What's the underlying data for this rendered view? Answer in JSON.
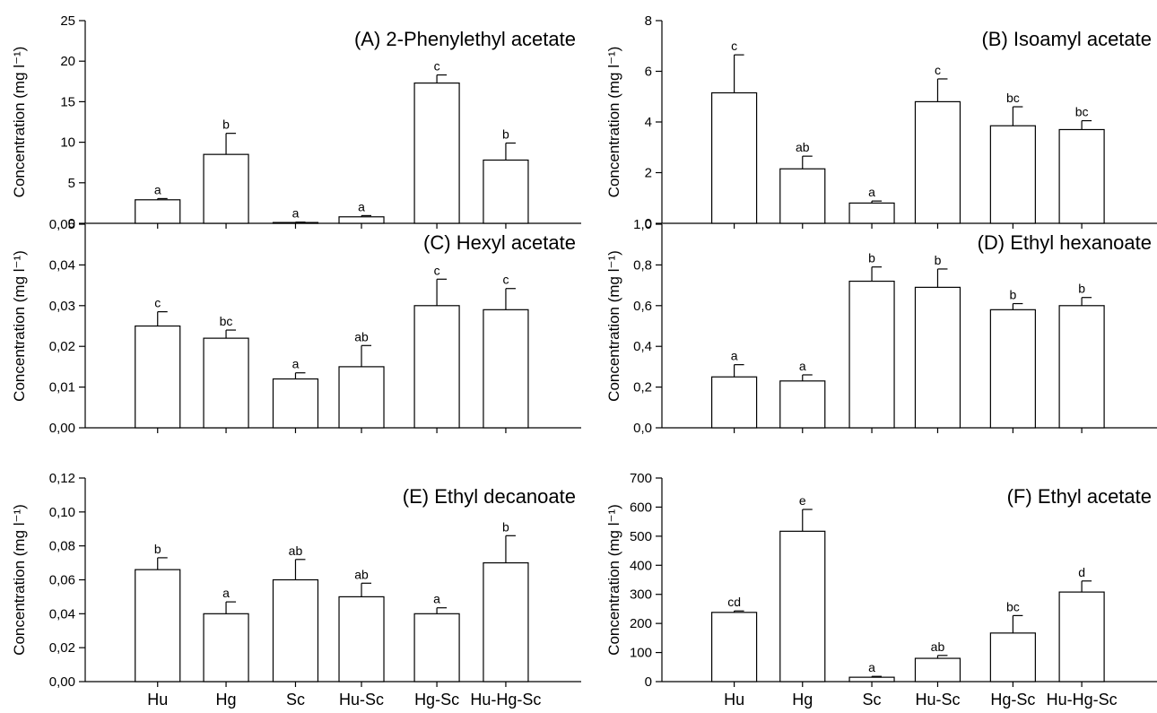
{
  "chart_data": [
    {
      "type": "bar",
      "title": "(A)  2-Phenylethyl acetate",
      "ylabel": "Concentration (mg l⁻¹)",
      "categories": [
        "Hu",
        "Hg",
        "Sc",
        "Hu-Sc",
        "Hg-Sc",
        "Hu-Hg-Sc"
      ],
      "values": [
        2.9,
        8.5,
        0.1,
        0.8,
        17.3,
        7.8
      ],
      "errors": [
        0.15,
        2.6,
        0.05,
        0.15,
        1.0,
        2.1
      ],
      "letters": [
        "a",
        "b",
        "a",
        "a",
        "c",
        "b"
      ],
      "ylim": [
        0,
        25
      ],
      "yticks": [
        0,
        5,
        10,
        15,
        20,
        25
      ],
      "ytick_labels": [
        "0",
        "5",
        "10",
        "15",
        "20",
        "25"
      ],
      "show_xtick_labels": false
    },
    {
      "type": "bar",
      "title": "(B) Isoamyl acetate",
      "ylabel": "Concentration (mg l⁻¹)",
      "categories": [
        "Hu",
        "Hg",
        "Sc",
        "Hu-Sc",
        "Hg-Sc",
        "Hu-Hg-Sc"
      ],
      "values": [
        5.15,
        2.15,
        0.8,
        4.8,
        3.85,
        3.7
      ],
      "errors": [
        1.5,
        0.5,
        0.08,
        0.9,
        0.75,
        0.35
      ],
      "letters": [
        "c",
        "ab",
        "a",
        "c",
        "bc",
        "bc"
      ],
      "ylim": [
        0,
        8
      ],
      "yticks": [
        0,
        2,
        4,
        6,
        8
      ],
      "ytick_labels": [
        "0",
        "2",
        "4",
        "6",
        "8"
      ],
      "show_xtick_labels": false
    },
    {
      "type": "bar",
      "title": "(C)  Hexyl acetate",
      "ylabel": "Concentration (mg l⁻¹)",
      "categories": [
        "Hu",
        "Hg",
        "Sc",
        "Hu-Sc",
        "Hg-Sc",
        "Hu-Hg-Sc"
      ],
      "values": [
        0.025,
        0.022,
        0.012,
        0.015,
        0.03,
        0.029
      ],
      "errors": [
        0.0035,
        0.002,
        0.0015,
        0.0052,
        0.0065,
        0.0052
      ],
      "letters": [
        "c",
        "bc",
        "a",
        "ab",
        "c",
        "c"
      ],
      "ylim": [
        0,
        0.05
      ],
      "yticks": [
        0,
        0.01,
        0.02,
        0.03,
        0.04,
        0.05
      ],
      "ytick_labels": [
        "0,00",
        "0,01",
        "0,02",
        "0,03",
        "0,04",
        "0,05"
      ],
      "show_xtick_labels": false
    },
    {
      "type": "bar",
      "title": "(D) Ethyl hexanoate",
      "ylabel": "Concentration (mg l⁻¹)",
      "categories": [
        "Hu",
        "Hg",
        "Sc",
        "Hu-Sc",
        "Hg-Sc",
        "Hu-Hg-Sc"
      ],
      "values": [
        0.25,
        0.23,
        0.72,
        0.69,
        0.58,
        0.6
      ],
      "errors": [
        0.06,
        0.03,
        0.07,
        0.09,
        0.03,
        0.04
      ],
      "letters": [
        "a",
        "a",
        "b",
        "b",
        "b",
        "b"
      ],
      "ylim": [
        0,
        1
      ],
      "yticks": [
        0,
        0.2,
        0.4,
        0.6,
        0.8,
        1.0
      ],
      "ytick_labels": [
        "0,0",
        "0,2",
        "0,4",
        "0,6",
        "0,8",
        "1,0"
      ],
      "show_xtick_labels": false
    },
    {
      "type": "bar",
      "title": "(E)  Ethyl decanoate",
      "ylabel": "Concentration (mg l⁻¹)",
      "categories": [
        "Hu",
        "Hg",
        "Sc",
        "Hu-Sc",
        "Hg-Sc",
        "Hu-Hg-Sc"
      ],
      "values": [
        0.066,
        0.04,
        0.06,
        0.05,
        0.04,
        0.07
      ],
      "errors": [
        0.007,
        0.007,
        0.012,
        0.008,
        0.0035,
        0.016
      ],
      "letters": [
        "b",
        "a",
        "ab",
        "ab",
        "a",
        "b"
      ],
      "ylim": [
        0,
        0.12
      ],
      "yticks": [
        0,
        0.02,
        0.04,
        0.06,
        0.08,
        0.1,
        0.12
      ],
      "ytick_labels": [
        "0,00",
        "0,02",
        "0,04",
        "0,06",
        "0,08",
        "0,10",
        "0,12"
      ],
      "show_xtick_labels": true
    },
    {
      "type": "bar",
      "title": "(F)  Ethyl acetate",
      "ylabel": "Concentration (mg l⁻¹)",
      "categories": [
        "Hu",
        "Hg",
        "Sc",
        "Hu-Sc",
        "Hg-Sc",
        "Hu-Hg-Sc"
      ],
      "values": [
        238,
        517,
        15,
        80,
        167,
        308
      ],
      "errors": [
        5,
        75,
        3,
        10,
        60,
        38
      ],
      "letters": [
        "cd",
        "e",
        "a",
        "ab",
        "bc",
        "d"
      ],
      "ylim": [
        0,
        700
      ],
      "yticks": [
        0,
        100,
        200,
        300,
        400,
        500,
        600,
        700
      ],
      "ytick_labels": [
        "0",
        "100",
        "200",
        "300",
        "400",
        "500",
        "600",
        "700"
      ],
      "show_xtick_labels": true
    }
  ]
}
